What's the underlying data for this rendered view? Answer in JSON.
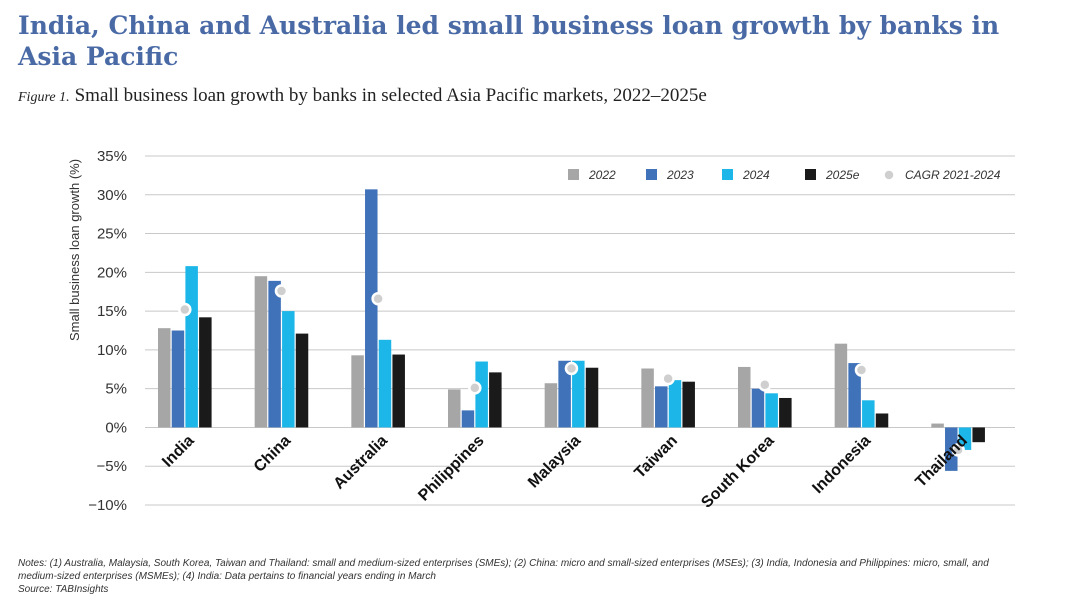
{
  "headline": "India, China and Australia led small business loan growth by banks in Asia Pacific",
  "figure_label": "Figure 1.",
  "figure_title": "Small business loan growth by banks in selected Asia Pacific markets, 2022–2025e",
  "notes": {
    "text": "Notes: (1) Australia, Malaysia, South Korea, Taiwan and Thailand: small and medium-sized enterprises (SMEs); (2) China: micro and small-sized enterprises (MSEs); (3) India, Indonesia and Philippines: micro, small, and medium-sized enterprises (MSMEs); (4) India: Data pertains to financial years ending in March",
    "source": "Source: TABInsights"
  },
  "colors": {
    "2022": "#a6a6a6",
    "2023": "#3f72b8",
    "2024": "#1cb7e8",
    "2025e": "#1a1a1a",
    "cagr_fill": "#cfcfcf",
    "grid": "#c8c8c8"
  },
  "chart_data": {
    "type": "bar",
    "title": "Small business loan growth by banks in selected Asia Pacific markets, 2022–2025e",
    "ylabel": "Small business loan growth (%)",
    "xlabel": "",
    "ylim": [
      -10,
      35
    ],
    "yticks": [
      -10,
      -5,
      0,
      5,
      10,
      15,
      20,
      25,
      30,
      35
    ],
    "ytick_labels": [
      "−10%",
      "−5%",
      "0%",
      "5%",
      "10%",
      "15%",
      "20%",
      "25%",
      "30%",
      "35%"
    ],
    "grid": true,
    "legend_position": "top-right",
    "categories": [
      "India",
      "China",
      "Australia",
      "Philippines",
      "Malaysia",
      "Taiwan",
      "South Korea",
      "Indonesia",
      "Thailand"
    ],
    "series": [
      {
        "name": "2022",
        "values": [
          12.8,
          19.5,
          9.3,
          4.9,
          5.7,
          7.6,
          7.8,
          10.8,
          0.5
        ]
      },
      {
        "name": "2023",
        "values": [
          12.5,
          18.9,
          30.7,
          2.2,
          8.6,
          5.3,
          5.0,
          8.3,
          -5.6
        ]
      },
      {
        "name": "2024",
        "values": [
          20.8,
          15.0,
          11.3,
          8.5,
          8.6,
          6.1,
          4.4,
          3.5,
          -2.9
        ]
      },
      {
        "name": "2025e",
        "values": [
          14.2,
          12.1,
          9.4,
          7.1,
          7.7,
          5.9,
          3.8,
          1.8,
          -1.9
        ]
      }
    ],
    "markers": {
      "name": "CAGR 2021-2024",
      "values": [
        15.2,
        17.6,
        16.6,
        5.1,
        7.6,
        6.3,
        5.5,
        7.4,
        -2.9
      ]
    }
  }
}
